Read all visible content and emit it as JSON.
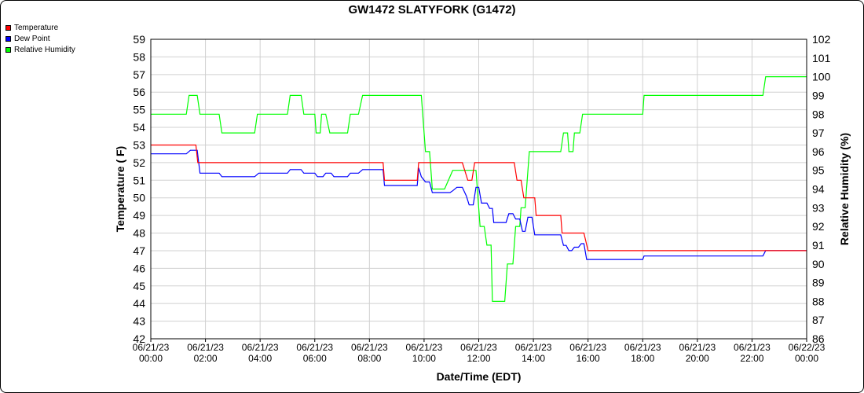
{
  "chart_data": {
    "type": "line",
    "title": "GW1472 SLATYFORK (G1472)",
    "xlabel": "Date/Time (EDT)",
    "ylabel_left": "Temperature ( F)",
    "ylabel_right": "Relative Humidity (%)",
    "ylim_left": [
      42,
      59
    ],
    "ylim_right": [
      86,
      102
    ],
    "xlim_hours": [
      0,
      24
    ],
    "x_ticks": [
      "06/21/23 00:00",
      "06/21/23 02:00",
      "06/21/23 04:00",
      "06/21/23 06:00",
      "06/21/23 08:00",
      "06/21/23 10:00",
      "06/21/23 12:00",
      "06/21/23 14:00",
      "06/21/23 16:00",
      "06/21/23 18:00",
      "06/21/23 20:00",
      "06/21/23 22:00",
      "06/22/23 00:00"
    ],
    "y_ticks_left": [
      "42",
      "43",
      "44",
      "45",
      "46",
      "47",
      "48",
      "49",
      "50",
      "51",
      "52",
      "53",
      "54",
      "55",
      "56",
      "57",
      "58",
      "59"
    ],
    "y_ticks_right": [
      "86",
      "87",
      "88",
      "89",
      "90",
      "91",
      "92",
      "93",
      "94",
      "95",
      "96",
      "97",
      "98",
      "99",
      "100",
      "101",
      "102"
    ],
    "grid": true,
    "legend_position": "top-left",
    "series": [
      {
        "name": "Temperature",
        "color": "#ff0000",
        "axis": "left",
        "points": [
          [
            0,
            53
          ],
          [
            1.65,
            53
          ],
          [
            1.72,
            52
          ],
          [
            8.5,
            52
          ],
          [
            8.55,
            51
          ],
          [
            9.75,
            51
          ],
          [
            9.8,
            52
          ],
          [
            11.4,
            52
          ],
          [
            11.6,
            51
          ],
          [
            11.75,
            51
          ],
          [
            11.85,
            52
          ],
          [
            13.3,
            52
          ],
          [
            13.4,
            51
          ],
          [
            13.55,
            51
          ],
          [
            13.65,
            50
          ],
          [
            14.05,
            50
          ],
          [
            14.1,
            49
          ],
          [
            15.0,
            49
          ],
          [
            15.05,
            48
          ],
          [
            15.85,
            48
          ],
          [
            16.0,
            47
          ],
          [
            24,
            47
          ]
        ]
      },
      {
        "name": "Dew Point",
        "color": "#0000ff",
        "axis": "left",
        "points": [
          [
            0,
            52.5
          ],
          [
            1.3,
            52.5
          ],
          [
            1.45,
            52.7
          ],
          [
            1.7,
            52.7
          ],
          [
            1.8,
            51.4
          ],
          [
            2.5,
            51.4
          ],
          [
            2.6,
            51.2
          ],
          [
            3.8,
            51.2
          ],
          [
            3.95,
            51.4
          ],
          [
            5.0,
            51.4
          ],
          [
            5.1,
            51.6
          ],
          [
            5.5,
            51.6
          ],
          [
            5.6,
            51.4
          ],
          [
            6.0,
            51.4
          ],
          [
            6.1,
            51.2
          ],
          [
            6.3,
            51.2
          ],
          [
            6.4,
            51.4
          ],
          [
            6.6,
            51.4
          ],
          [
            6.7,
            51.2
          ],
          [
            7.2,
            51.2
          ],
          [
            7.3,
            51.4
          ],
          [
            7.6,
            51.4
          ],
          [
            7.75,
            51.6
          ],
          [
            8.5,
            51.6
          ],
          [
            8.55,
            50.7
          ],
          [
            9.75,
            50.7
          ],
          [
            9.8,
            51.7
          ],
          [
            9.9,
            51.2
          ],
          [
            10.05,
            50.9
          ],
          [
            10.2,
            50.9
          ],
          [
            10.3,
            50.3
          ],
          [
            10.95,
            50.3
          ],
          [
            11.05,
            50.4
          ],
          [
            11.2,
            50.6
          ],
          [
            11.4,
            50.6
          ],
          [
            11.55,
            50.1
          ],
          [
            11.65,
            49.6
          ],
          [
            11.8,
            49.6
          ],
          [
            11.9,
            50.6
          ],
          [
            12.0,
            50.6
          ],
          [
            12.1,
            49.7
          ],
          [
            12.3,
            49.7
          ],
          [
            12.4,
            49.4
          ],
          [
            12.5,
            49.4
          ],
          [
            12.55,
            48.6
          ],
          [
            13.0,
            48.6
          ],
          [
            13.1,
            49.1
          ],
          [
            13.25,
            49.1
          ],
          [
            13.35,
            48.8
          ],
          [
            13.5,
            48.8
          ],
          [
            13.6,
            48.1
          ],
          [
            13.7,
            48.1
          ],
          [
            13.8,
            48.9
          ],
          [
            13.95,
            48.9
          ],
          [
            14.05,
            47.9
          ],
          [
            15.0,
            47.9
          ],
          [
            15.1,
            47.3
          ],
          [
            15.2,
            47.3
          ],
          [
            15.3,
            47.0
          ],
          [
            15.4,
            47.0
          ],
          [
            15.5,
            47.2
          ],
          [
            15.65,
            47.2
          ],
          [
            15.75,
            47.4
          ],
          [
            15.85,
            47.4
          ],
          [
            15.95,
            46.5
          ],
          [
            18.0,
            46.5
          ],
          [
            18.05,
            46.7
          ],
          [
            22.4,
            46.7
          ],
          [
            22.5,
            47.0
          ],
          [
            24,
            47.0
          ]
        ]
      },
      {
        "name": "Relative Humidity",
        "color": "#00ff00",
        "axis": "right",
        "points": [
          [
            0,
            98
          ],
          [
            1.3,
            98
          ],
          [
            1.4,
            99
          ],
          [
            1.7,
            99
          ],
          [
            1.8,
            98
          ],
          [
            2.5,
            98
          ],
          [
            2.6,
            97
          ],
          [
            3.8,
            97
          ],
          [
            3.9,
            98
          ],
          [
            5.0,
            98
          ],
          [
            5.1,
            99
          ],
          [
            5.5,
            99
          ],
          [
            5.6,
            98
          ],
          [
            6.0,
            98
          ],
          [
            6.05,
            97
          ],
          [
            6.2,
            97
          ],
          [
            6.25,
            98
          ],
          [
            6.4,
            98
          ],
          [
            6.55,
            97
          ],
          [
            7.2,
            97
          ],
          [
            7.3,
            98
          ],
          [
            7.6,
            98
          ],
          [
            7.75,
            99
          ],
          [
            9.9,
            99
          ],
          [
            10.05,
            96
          ],
          [
            10.2,
            96
          ],
          [
            10.3,
            94
          ],
          [
            10.75,
            94
          ],
          [
            11.05,
            95
          ],
          [
            11.9,
            95
          ],
          [
            12.05,
            92
          ],
          [
            12.2,
            92
          ],
          [
            12.3,
            91
          ],
          [
            12.45,
            91
          ],
          [
            12.5,
            88
          ],
          [
            12.95,
            88
          ],
          [
            13.05,
            90
          ],
          [
            13.25,
            90
          ],
          [
            13.35,
            92
          ],
          [
            13.5,
            92
          ],
          [
            13.55,
            93
          ],
          [
            13.7,
            93
          ],
          [
            13.85,
            96
          ],
          [
            15.0,
            96
          ],
          [
            15.1,
            97
          ],
          [
            15.25,
            97
          ],
          [
            15.3,
            96
          ],
          [
            15.45,
            96
          ],
          [
            15.5,
            97
          ],
          [
            15.7,
            97
          ],
          [
            15.8,
            98
          ],
          [
            18.0,
            98
          ],
          [
            18.05,
            99
          ],
          [
            22.4,
            99
          ],
          [
            22.5,
            100
          ],
          [
            24,
            100
          ]
        ]
      }
    ]
  }
}
